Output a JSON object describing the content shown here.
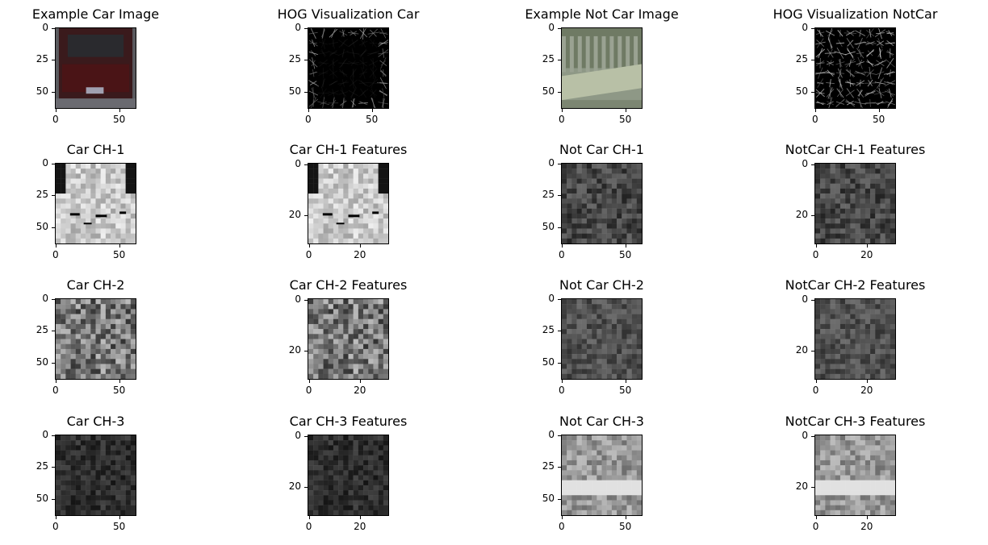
{
  "panels": [
    {
      "title": "Example Car Image",
      "yticks": [
        "0",
        "25",
        "50"
      ],
      "xticks": [
        "0",
        "50"
      ],
      "kind": "car-color"
    },
    {
      "title": "HOG Visualization Car",
      "yticks": [
        "0",
        "25",
        "50"
      ],
      "xticks": [
        "0",
        "50"
      ],
      "kind": "hog"
    },
    {
      "title": "Example Not Car Image",
      "yticks": [
        "0",
        "25",
        "50"
      ],
      "xticks": [
        "0",
        "50"
      ],
      "kind": "notcar-color"
    },
    {
      "title": "HOG Visualization NotCar",
      "yticks": [
        "0",
        "25",
        "50"
      ],
      "xticks": [
        "0",
        "50"
      ],
      "kind": "hog-dense"
    },
    {
      "title": "Car CH-1",
      "yticks": [
        "0",
        "25",
        "50"
      ],
      "xticks": [
        "0",
        "50"
      ],
      "kind": "car-ch1"
    },
    {
      "title": "Car CH-1 Features",
      "yticks": [
        "0",
        "20"
      ],
      "xticks": [
        "0",
        "20"
      ],
      "kind": "car-ch1"
    },
    {
      "title": "Not Car CH-1",
      "yticks": [
        "0",
        "25",
        "50"
      ],
      "xticks": [
        "0",
        "50"
      ],
      "kind": "notcar-ch1"
    },
    {
      "title": "NotCar CH-1 Features",
      "yticks": [
        "0",
        "20"
      ],
      "xticks": [
        "0",
        "20"
      ],
      "kind": "notcar-ch1"
    },
    {
      "title": "Car CH-2",
      "yticks": [
        "0",
        "25",
        "50"
      ],
      "xticks": [
        "0",
        "50"
      ],
      "kind": "car-ch2"
    },
    {
      "title": "Car CH-2 Features",
      "yticks": [
        "0",
        "20"
      ],
      "xticks": [
        "0",
        "20"
      ],
      "kind": "car-ch2"
    },
    {
      "title": "Not Car CH-2",
      "yticks": [
        "0",
        "25",
        "50"
      ],
      "xticks": [
        "0",
        "50"
      ],
      "kind": "notcar-ch2"
    },
    {
      "title": "NotCar CH-2 Features",
      "yticks": [
        "0",
        "20"
      ],
      "xticks": [
        "0",
        "20"
      ],
      "kind": "notcar-ch2"
    },
    {
      "title": "Car CH-3",
      "yticks": [
        "0",
        "25",
        "50"
      ],
      "xticks": [
        "0",
        "50"
      ],
      "kind": "car-ch3"
    },
    {
      "title": "Car CH-3 Features",
      "yticks": [
        "0",
        "20"
      ],
      "xticks": [
        "0",
        "20"
      ],
      "kind": "car-ch3"
    },
    {
      "title": "Not Car CH-3",
      "yticks": [
        "0",
        "25",
        "50"
      ],
      "xticks": [
        "0",
        "50"
      ],
      "kind": "notcar-ch3"
    },
    {
      "title": "NotCar CH-3 Features",
      "yticks": [
        "0",
        "20"
      ],
      "xticks": [
        "0",
        "20"
      ],
      "kind": "notcar-ch3"
    }
  ]
}
